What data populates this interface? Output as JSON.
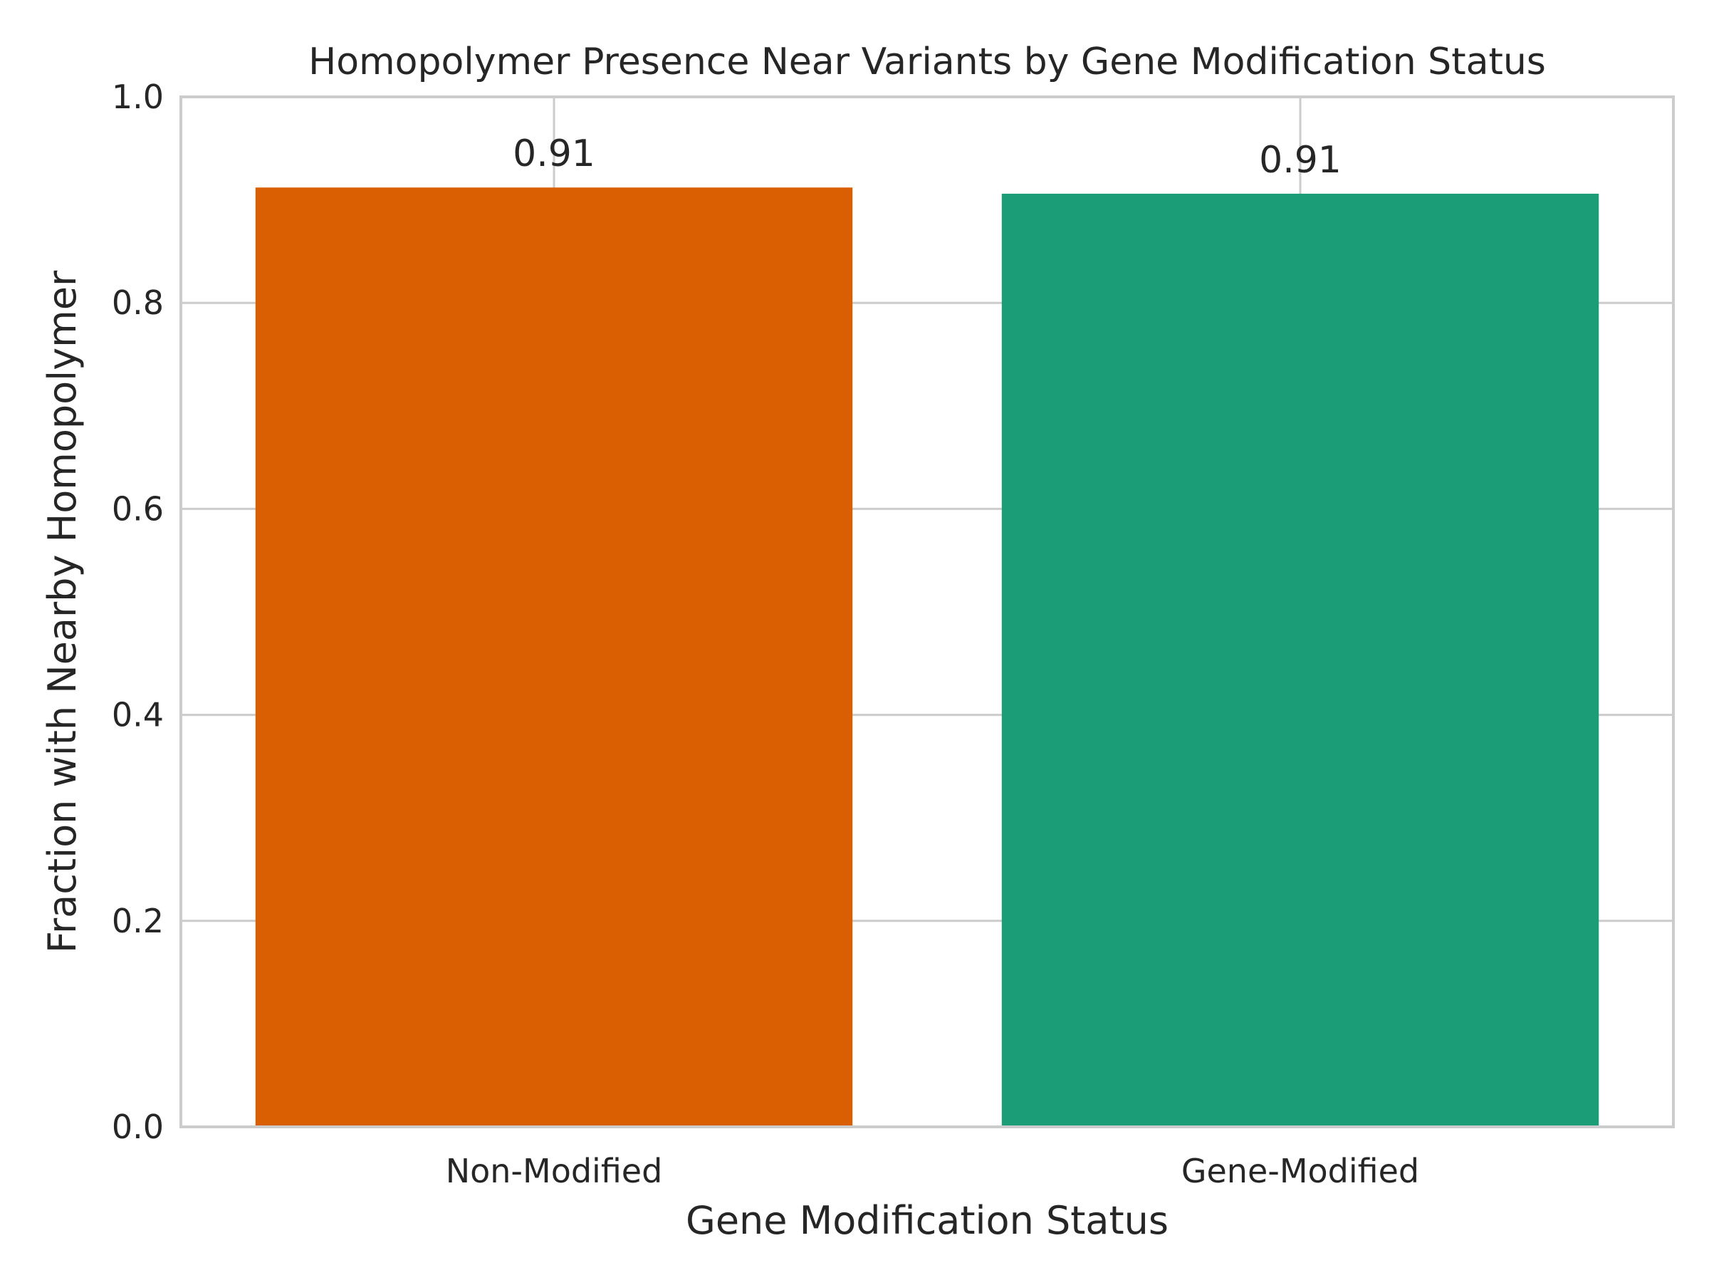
{
  "chart_data": {
    "type": "bar",
    "title": "Homopolymer Presence Near Variants by Gene Modification Status",
    "xlabel": "Gene Modification Status",
    "ylabel": "Fraction with Nearby Homopolymer",
    "categories": [
      "Non-Modified",
      "Gene-Modified"
    ],
    "values": [
      0.912,
      0.906
    ],
    "data_labels": [
      "0.91",
      "0.91"
    ],
    "colors": [
      "#d95f02",
      "#1b9e77"
    ],
    "ylim": [
      0,
      1.0
    ],
    "yticks": [
      0.0,
      0.2,
      0.4,
      0.6,
      0.8,
      1.0
    ],
    "ytick_labels": [
      "0.0",
      "0.2",
      "0.4",
      "0.6",
      "0.8",
      "1.0"
    ],
    "grid": true,
    "legend": "none"
  }
}
